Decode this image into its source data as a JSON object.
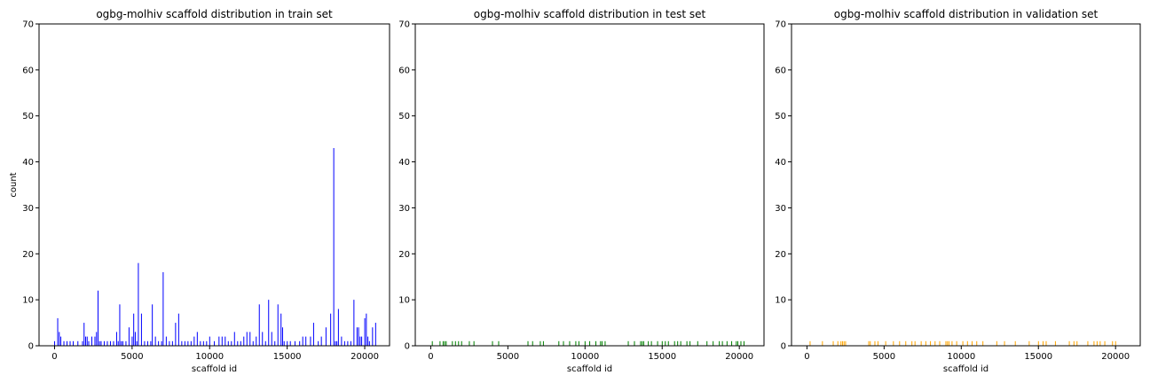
{
  "chart_data": [
    {
      "type": "bar",
      "title": "ogbg-molhiv scaffold distribution in train set",
      "xlabel": "scaffold id",
      "ylabel": "count",
      "xlim": [
        -1000,
        21600
      ],
      "ylim": [
        0,
        70
      ],
      "xticks": [
        0,
        5000,
        10000,
        15000,
        20000
      ],
      "yticks": [
        0,
        10,
        20,
        30,
        40,
        50,
        60,
        70
      ],
      "color": "#0000ff",
      "grid": false,
      "x": [
        0,
        200,
        300,
        400,
        600,
        800,
        1000,
        1200,
        1500,
        1800,
        1900,
        2000,
        2100,
        2200,
        2400,
        2600,
        2700,
        2800,
        2900,
        3000,
        3200,
        3400,
        3600,
        3800,
        4000,
        4100,
        4200,
        4300,
        4400,
        4600,
        4800,
        5000,
        5100,
        5200,
        5300,
        5400,
        5600,
        5800,
        6000,
        6200,
        6300,
        6500,
        6700,
        6900,
        7000,
        7200,
        7400,
        7600,
        7800,
        8000,
        8200,
        8400,
        8600,
        8800,
        9000,
        9200,
        9400,
        9600,
        9800,
        10000,
        10300,
        10600,
        10800,
        11000,
        11200,
        11400,
        11600,
        11800,
        12000,
        12200,
        12400,
        12600,
        12800,
        13000,
        13200,
        13400,
        13600,
        13800,
        14000,
        14200,
        14400,
        14600,
        14700,
        14800,
        15000,
        15200,
        15500,
        15800,
        16000,
        16200,
        16500,
        16700,
        17000,
        17200,
        17500,
        17800,
        18000,
        18100,
        18200,
        18300,
        18500,
        18700,
        18900,
        19100,
        19300,
        19500,
        19600,
        19700,
        19800,
        20000,
        20100,
        20200,
        20300,
        20500,
        20700
      ],
      "values": [
        1,
        6,
        3,
        2,
        1,
        1,
        1,
        1,
        1,
        1,
        5,
        2,
        2,
        1,
        2,
        2,
        3,
        12,
        1,
        1,
        1,
        1,
        1,
        1,
        3,
        1,
        9,
        1,
        1,
        1,
        4,
        2,
        7,
        3,
        1,
        18,
        7,
        1,
        1,
        1,
        9,
        2,
        1,
        1,
        16,
        2,
        1,
        1,
        5,
        7,
        1,
        1,
        1,
        1,
        2,
        3,
        1,
        1,
        1,
        2,
        1,
        2,
        2,
        2,
        1,
        1,
        3,
        1,
        1,
        2,
        3,
        3,
        1,
        2,
        9,
        3,
        1,
        10,
        3,
        1,
        9,
        7,
        4,
        1,
        1,
        1,
        1,
        1,
        2,
        2,
        2,
        5,
        1,
        2,
        4,
        7,
        43,
        1,
        1,
        8,
        2,
        1,
        1,
        1,
        10,
        4,
        4,
        2,
        2,
        6,
        7,
        2,
        1,
        4,
        5
      ]
    },
    {
      "type": "bar",
      "title": "ogbg-molhiv scaffold distribution in test set",
      "xlabel": "scaffold id",
      "ylabel": "",
      "xlim": [
        -1000,
        21600
      ],
      "ylim": [
        0,
        70
      ],
      "xticks": [
        0,
        5000,
        10000,
        15000,
        20000
      ],
      "yticks": [
        0,
        10,
        20,
        30,
        40,
        50,
        60,
        70
      ],
      "color": "#008000",
      "grid": false,
      "x": [
        100,
        600,
        800,
        900,
        1000,
        1400,
        1600,
        1800,
        2000,
        2500,
        2800,
        4000,
        4400,
        6300,
        6600,
        7100,
        7300,
        8300,
        8600,
        9000,
        9400,
        9600,
        10000,
        10300,
        10700,
        11000,
        11100,
        11300,
        12800,
        13200,
        13600,
        13700,
        13800,
        14100,
        14300,
        14700,
        15000,
        15200,
        15400,
        15800,
        16000,
        16200,
        16600,
        16800,
        17300,
        17900,
        18300,
        18700,
        18900,
        19200,
        19500,
        19800,
        19900,
        20100,
        20300
      ],
      "values": [
        1,
        1,
        1,
        1,
        1,
        1,
        1,
        1,
        1,
        1,
        1,
        1,
        1,
        1,
        1,
        1,
        1,
        1,
        1,
        1,
        1,
        1,
        1,
        1,
        1,
        1,
        1,
        1,
        1,
        1,
        1,
        1,
        1,
        1,
        1,
        1,
        1,
        1,
        1,
        1,
        1,
        1,
        1,
        1,
        1,
        1,
        1,
        1,
        1,
        1,
        1,
        1,
        1,
        1,
        1
      ]
    },
    {
      "type": "bar",
      "title": "ogbg-molhiv scaffold distribution in validation set",
      "xlabel": "scaffold id",
      "ylabel": "",
      "xlim": [
        -1000,
        21600
      ],
      "ylim": [
        0,
        70
      ],
      "xticks": [
        0,
        5000,
        10000,
        15000,
        20000
      ],
      "yticks": [
        0,
        10,
        20,
        30,
        40,
        50,
        60,
        70
      ],
      "color": "#ffa500",
      "grid": false,
      "x": [
        200,
        1000,
        1700,
        2000,
        2200,
        2300,
        2400,
        2500,
        4000,
        4100,
        4400,
        4600,
        5100,
        5600,
        6000,
        6400,
        6800,
        7000,
        7400,
        7700,
        8000,
        8300,
        8600,
        9000,
        9100,
        9200,
        9400,
        9700,
        10100,
        10400,
        10700,
        11000,
        11400,
        12300,
        12800,
        13500,
        14400,
        15000,
        15300,
        15500,
        16100,
        17000,
        17300,
        17500,
        18200,
        18600,
        18800,
        19000,
        19300,
        19800,
        20000
      ],
      "values": [
        1,
        1,
        1,
        1,
        1,
        1,
        1,
        1,
        1,
        1,
        1,
        1,
        1,
        1,
        1,
        1,
        1,
        1,
        1,
        1,
        1,
        1,
        1,
        1,
        1,
        1,
        1,
        1,
        1,
        1,
        1,
        1,
        1,
        1,
        1,
        1,
        1,
        1,
        1,
        1,
        1,
        1,
        1,
        1,
        1,
        1,
        1,
        1,
        1,
        1,
        1
      ]
    }
  ]
}
